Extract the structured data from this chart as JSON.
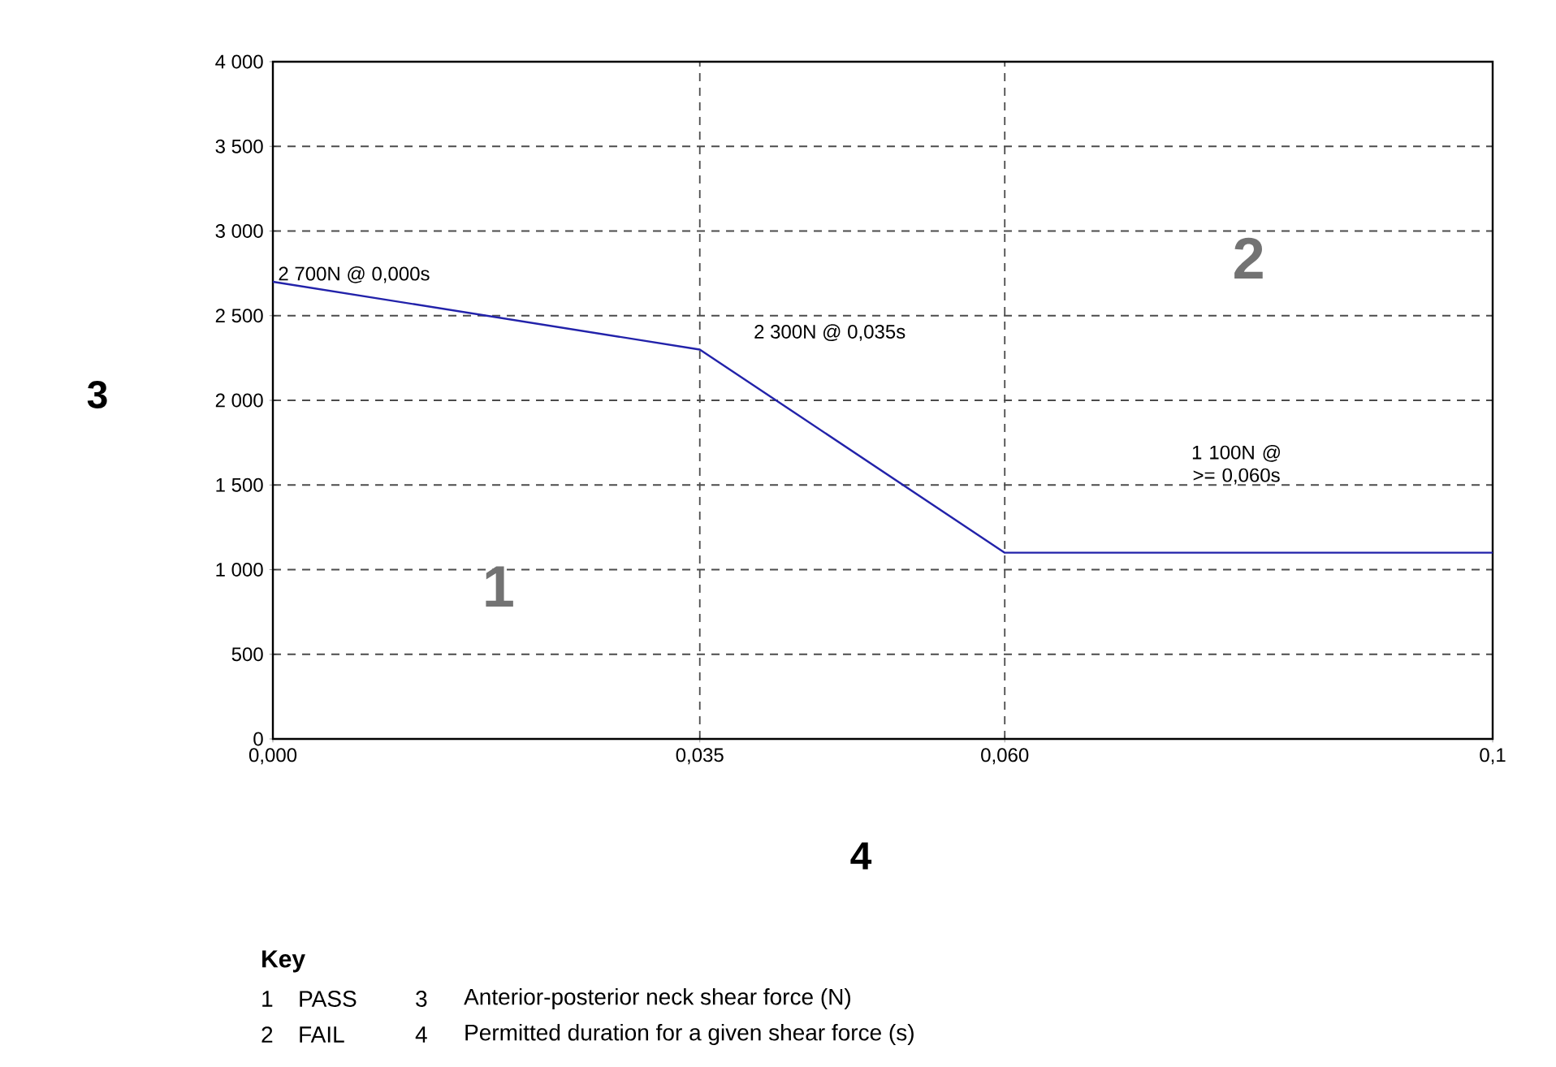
{
  "chart_data": {
    "type": "line",
    "xlabel": "4",
    "ylabel": "3",
    "x": [
      0,
      0.035,
      0.06,
      0.1
    ],
    "series": [
      {
        "color": "#2222aa",
        "values": [
          2700,
          2300,
          1100,
          1100
        ]
      }
    ],
    "xlim": [
      0,
      0.1
    ],
    "xticks": [
      {
        "value": 0,
        "label": "0,000"
      },
      {
        "value": 0.035,
        "label": "0,035"
      },
      {
        "value": 0.06,
        "label": "0,060"
      },
      {
        "value": 0.1,
        "label": "0,1"
      }
    ],
    "ylim": [
      0,
      4000
    ],
    "yticks": [
      {
        "value": 0,
        "label": "0"
      },
      {
        "value": 500,
        "label": "500"
      },
      {
        "value": 1000,
        "label": "1 000"
      },
      {
        "value": 1500,
        "label": "1 500"
      },
      {
        "value": 2000,
        "label": "2 000"
      },
      {
        "value": 2500,
        "label": "2 500"
      },
      {
        "value": 3000,
        "label": "3 000"
      },
      {
        "value": 3500,
        "label": "3 500"
      },
      {
        "value": 4000,
        "label": "4 000"
      }
    ],
    "grid": true,
    "line_style": "solid",
    "marker": "none",
    "annotations": [
      {
        "text": "2 700N @ 0,000s",
        "x": 0,
        "y": 2700
      },
      {
        "text": "2 300N @ 0,035s",
        "x": 0.035,
        "y": 2300
      },
      "1 100N @ >= 0,060s",
      "1",
      "2",
      "Key",
      "1",
      "PASS",
      "3",
      "Anterior-posterior neck shear force (N)",
      "2",
      "FAIL",
      "4",
      "Permitted duration for a given shear force (s)"
    ]
  }
}
